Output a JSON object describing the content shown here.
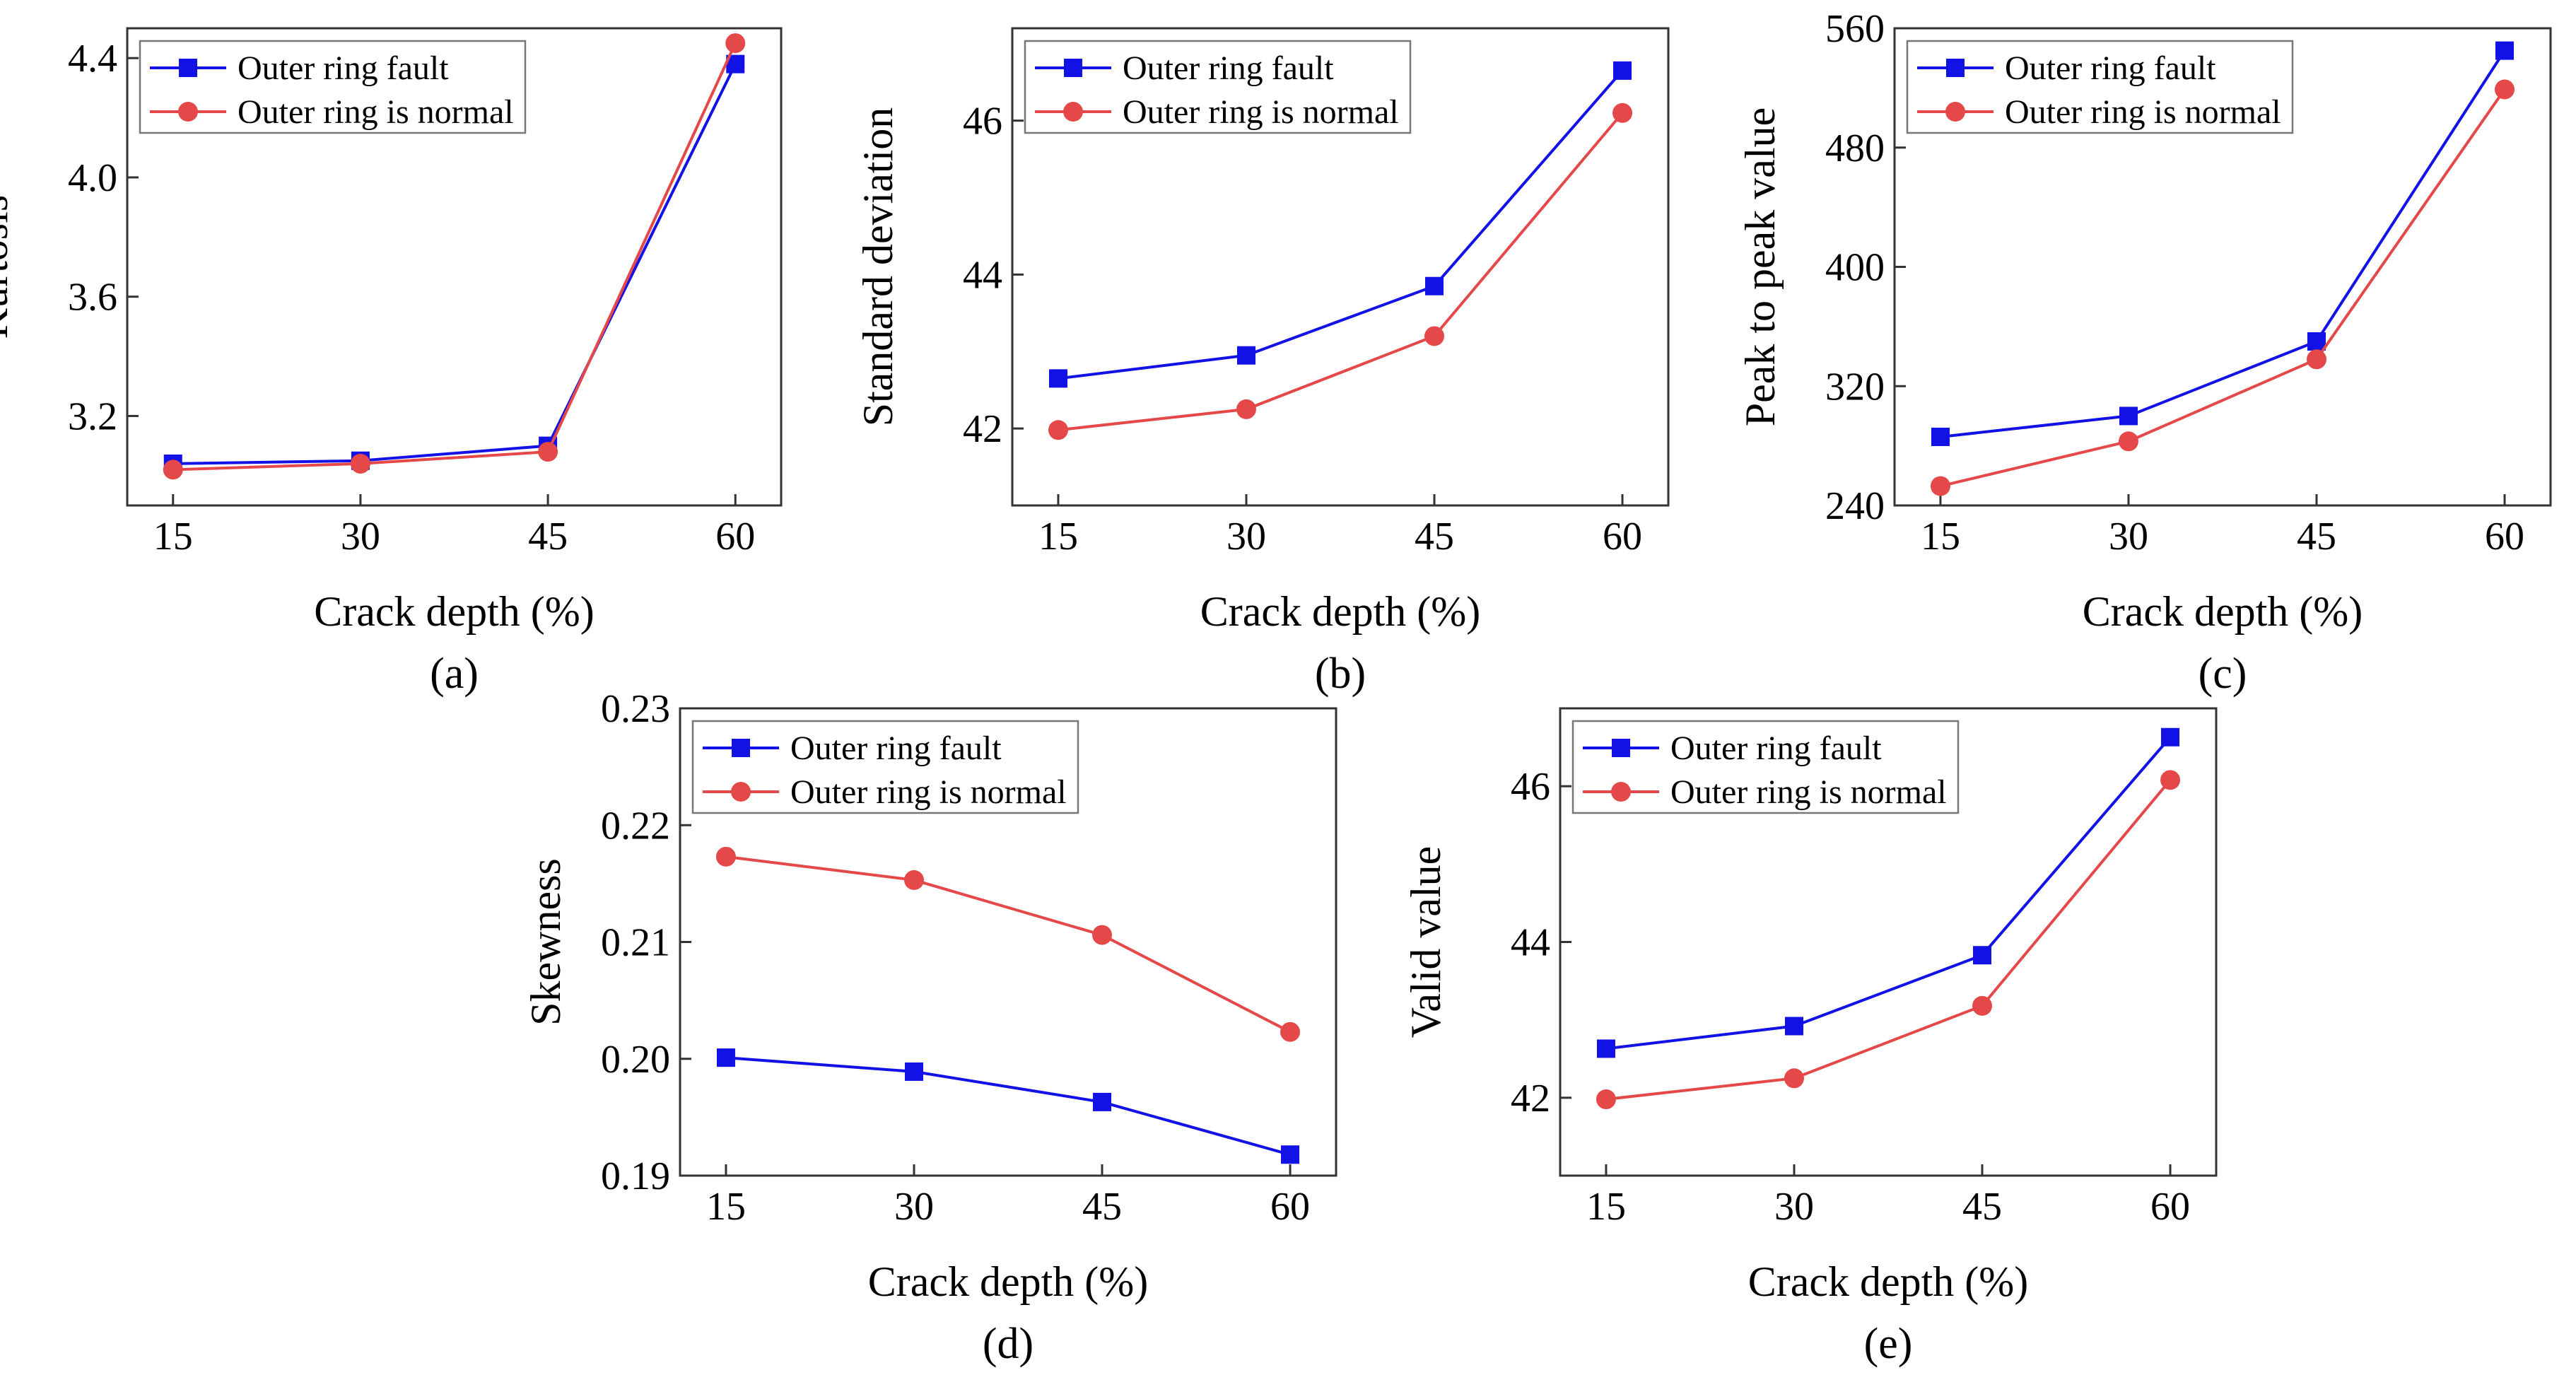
{
  "figure": {
    "background": "#ffffff"
  },
  "series_styles": [
    {
      "name": "Outer ring fault",
      "color": "#1212e6",
      "marker": "square"
    },
    {
      "name": "Outer ring is normal",
      "color": "#e54848",
      "marker": "circle"
    }
  ],
  "chart_data": [
    {
      "id": "a",
      "type": "line",
      "caption": "(a)",
      "xlabel": "Crack depth (%)",
      "ylabel": "Kurtosis",
      "x": [
        15,
        30,
        45,
        60
      ],
      "xticks": [
        "15",
        "30",
        "45",
        "60"
      ],
      "ylim": [
        2.9,
        4.5
      ],
      "yticks": [
        3.2,
        3.6,
        4.0,
        4.4
      ],
      "ytick_labels": [
        "3.2",
        "3.6",
        "4.0",
        "4.4"
      ],
      "series": [
        {
          "name": "Outer ring fault",
          "values": [
            3.04,
            3.05,
            3.1,
            4.38
          ]
        },
        {
          "name": "Outer ring is normal",
          "values": [
            3.02,
            3.04,
            3.08,
            4.45
          ]
        }
      ]
    },
    {
      "id": "b",
      "type": "line",
      "caption": "(b)",
      "xlabel": "Crack depth (%)",
      "ylabel": "Standard deviation",
      "x": [
        15,
        30,
        45,
        60
      ],
      "xticks": [
        "15",
        "30",
        "45",
        "60"
      ],
      "ylim": [
        41.0,
        47.2
      ],
      "yticks": [
        42,
        44,
        46
      ],
      "ytick_labels": [
        "42",
        "44",
        "46"
      ],
      "series": [
        {
          "name": "Outer ring fault",
          "values": [
            42.65,
            42.95,
            43.85,
            46.65
          ]
        },
        {
          "name": "Outer ring is normal",
          "values": [
            41.98,
            42.25,
            43.2,
            46.1
          ]
        }
      ]
    },
    {
      "id": "c",
      "type": "line",
      "caption": "(c)",
      "xlabel": "Crack depth (%)",
      "ylabel": "Peak to peak value",
      "x": [
        15,
        30,
        45,
        60
      ],
      "xticks": [
        "15",
        "30",
        "45",
        "60"
      ],
      "ylim": [
        240,
        560
      ],
      "yticks": [
        240,
        320,
        400,
        480,
        560
      ],
      "ytick_labels": [
        "240",
        "320",
        "400",
        "480",
        "560"
      ],
      "series": [
        {
          "name": "Outer ring fault",
          "values": [
            286,
            300,
            350,
            545
          ]
        },
        {
          "name": "Outer ring is normal",
          "values": [
            253,
            283,
            338,
            519
          ]
        }
      ]
    },
    {
      "id": "d",
      "type": "line",
      "caption": "(d)",
      "xlabel": "Crack depth (%)",
      "ylabel": "Skewness",
      "x": [
        15,
        30,
        45,
        60
      ],
      "xticks": [
        "15",
        "30",
        "45",
        "60"
      ],
      "ylim": [
        0.19,
        0.23
      ],
      "yticks": [
        0.19,
        0.2,
        0.21,
        0.22,
        0.23
      ],
      "ytick_labels": [
        "0.19",
        "0.20",
        "0.21",
        "0.22",
        "0.23"
      ],
      "series": [
        {
          "name": "Outer ring fault",
          "values": [
            0.2001,
            0.1989,
            0.1963,
            0.1918
          ]
        },
        {
          "name": "Outer ring is normal",
          "values": [
            0.2173,
            0.2153,
            0.2106,
            0.2023
          ]
        }
      ]
    },
    {
      "id": "e",
      "type": "line",
      "caption": "(e)",
      "xlabel": "Crack depth (%)",
      "ylabel": "Valid value",
      "x": [
        15,
        30,
        45,
        60
      ],
      "xticks": [
        "15",
        "30",
        "45",
        "60"
      ],
      "ylim": [
        41.0,
        47.0
      ],
      "yticks": [
        42,
        44,
        46
      ],
      "ytick_labels": [
        "42",
        "44",
        "46"
      ],
      "series": [
        {
          "name": "Outer ring fault",
          "values": [
            42.63,
            42.92,
            43.83,
            46.63
          ]
        },
        {
          "name": "Outer ring is normal",
          "values": [
            41.98,
            42.25,
            43.18,
            46.08
          ]
        }
      ]
    }
  ]
}
